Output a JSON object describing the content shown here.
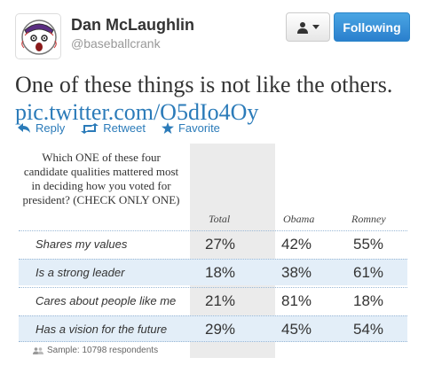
{
  "user": {
    "name": "Dan McLaughlin",
    "handle": "@baseballcrank"
  },
  "buttons": {
    "following_label": "Following"
  },
  "tweet": {
    "text": "One of these things is not like the others.",
    "link": "pic.twitter.com/O5dIo4Oy"
  },
  "actions": {
    "reply": "Reply",
    "retweet": "Retweet",
    "favorite": "Favorite"
  },
  "poll": {
    "question": "Which ONE of these four candidate qualities mattered most in deciding how you voted for president? (CHECK ONLY ONE)",
    "columns": [
      "Total",
      "Obama",
      "Romney"
    ],
    "rows": [
      {
        "label": "Shares my values",
        "values": [
          "27%",
          "42%",
          "55%"
        ]
      },
      {
        "label": "Is a strong leader",
        "values": [
          "18%",
          "38%",
          "61%"
        ]
      },
      {
        "label": "Cares about people like me",
        "values": [
          "21%",
          "81%",
          "18%"
        ]
      },
      {
        "label": "Has a vision for the future",
        "values": [
          "29%",
          "45%",
          "54%"
        ]
      }
    ],
    "sample": "Sample: 10798 respondents"
  },
  "colors": {
    "link": "#2b7bb9",
    "following_button": "#2a7fcd",
    "row_highlight": "#e3eef8",
    "column_shade": "#ebebeb"
  },
  "icons": {
    "avatar": "baseball-avatar",
    "follow_menu": "person-icon",
    "reply": "reply-arrow-icon",
    "retweet": "retweet-icon",
    "favorite": "star-icon",
    "sample": "people-icon"
  }
}
